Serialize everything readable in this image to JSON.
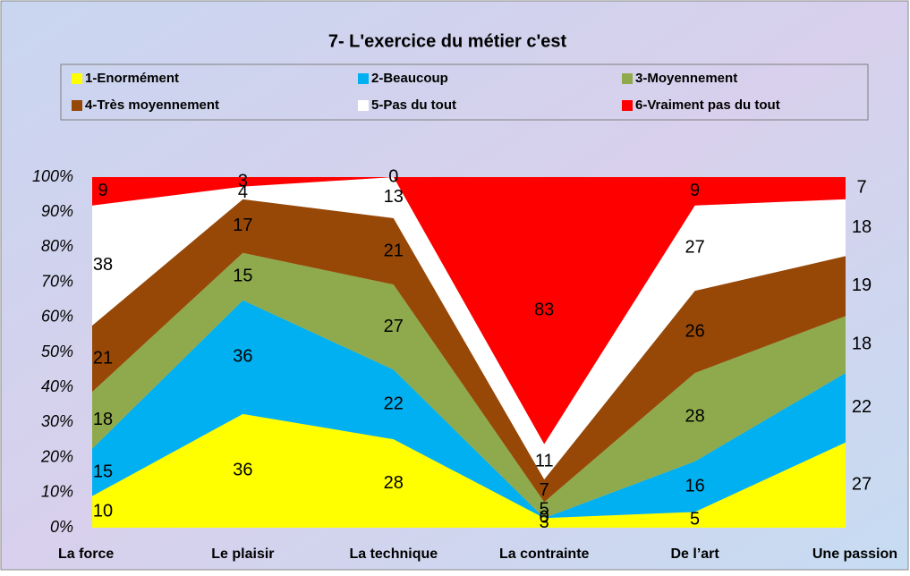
{
  "chart_data": {
    "type": "area",
    "stacking": "percent",
    "title": "7- L'exercice du métier c'est",
    "categories": [
      "La force",
      "Le plaisir",
      "La technique",
      "La contrainte",
      "De l’art",
      "Une passion"
    ],
    "series": [
      {
        "name": "1-Enormément",
        "color": "#ffff00",
        "values": [
          10,
          36,
          28,
          3,
          5,
          27
        ]
      },
      {
        "name": "2-Beaucoup",
        "color": "#00b0f0",
        "values": [
          15,
          36,
          22,
          0,
          16,
          22
        ]
      },
      {
        "name": "3-Moyennement",
        "color": "#8faa4c",
        "values": [
          18,
          15,
          27,
          5,
          28,
          18
        ]
      },
      {
        "name": "4-Très moyennement",
        "color": "#974806",
        "values": [
          21,
          17,
          21,
          7,
          26,
          19
        ]
      },
      {
        "name": "5-Pas du tout",
        "color": "#ffffff",
        "values": [
          38,
          4,
          13,
          11,
          27,
          18
        ]
      },
      {
        "name": "6-Vraiment pas du tout",
        "color": "#ff0000",
        "values": [
          9,
          3,
          0,
          83,
          9,
          7
        ]
      }
    ],
    "ylim": [
      0,
      100
    ],
    "yticks": [
      {
        "value": 0,
        "label": "0%"
      },
      {
        "value": 10,
        "label": "10%"
      },
      {
        "value": 20,
        "label": "20%"
      },
      {
        "value": 30,
        "label": "30%"
      },
      {
        "value": 40,
        "label": "40%"
      },
      {
        "value": 50,
        "label": "50%"
      },
      {
        "value": 60,
        "label": "60%"
      },
      {
        "value": 70,
        "label": "70%"
      },
      {
        "value": 80,
        "label": "80%"
      },
      {
        "value": 90,
        "label": "90%"
      },
      {
        "value": 100,
        "label": "100%"
      }
    ],
    "legend": "top"
  }
}
